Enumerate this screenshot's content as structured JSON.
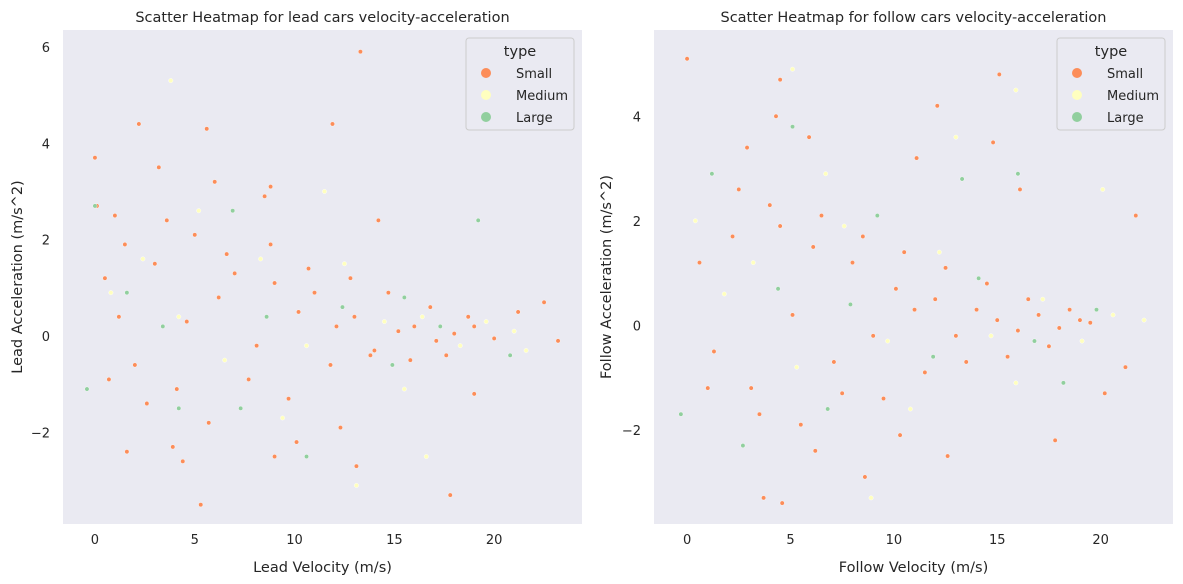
{
  "chart_data": [
    {
      "type": "scatter",
      "title": "Scatter Heatmap for lead cars velocity-acceleration",
      "xlabel": "Lead Velocity (m/s)",
      "ylabel": "Lead Acceleration (m/s^2)",
      "xlim": [
        -1.6,
        24.4
      ],
      "ylim": [
        -3.9,
        6.35
      ],
      "xticks": [
        0,
        5,
        10,
        15,
        20
      ],
      "yticks": [
        -2,
        0,
        2,
        4,
        6
      ],
      "xtick_labels": [
        "0",
        "5",
        "10",
        "15",
        "20"
      ],
      "ytick_labels": [
        "−2",
        "0",
        "2",
        "4",
        "6"
      ],
      "grid": false,
      "legend": {
        "title": "type",
        "placement": "top-right",
        "entries": [
          "Small",
          "Medium",
          "Large"
        ]
      },
      "series": [
        {
          "name": "Small",
          "color": "#fc8d59",
          "points": [
            [
              0,
              3.7
            ],
            [
              0.1,
              2.7
            ],
            [
              2.2,
              4.4
            ],
            [
              3.2,
              3.5
            ],
            [
              5.6,
              4.3
            ],
            [
              11.9,
              4.4
            ],
            [
              13.3,
              5.9
            ],
            [
              5.3,
              -3.5
            ],
            [
              17.8,
              -3.3
            ],
            [
              13.1,
              -2.7
            ],
            [
              4.4,
              -2.6
            ],
            [
              1.6,
              -2.4
            ],
            [
              9,
              -2.5
            ],
            [
              19,
              -1.2
            ],
            [
              21.2,
              0.5
            ],
            [
              23.2,
              -0.1
            ],
            [
              22.5,
              0.7
            ],
            [
              8.5,
              2.9
            ],
            [
              14.2,
              2.4
            ],
            [
              0.5,
              1.2
            ],
            [
              1.2,
              0.4
            ],
            [
              2,
              -0.6
            ],
            [
              3,
              1.5
            ],
            [
              4.1,
              -1.1
            ],
            [
              5,
              2.1
            ],
            [
              6.2,
              0.8
            ],
            [
              7,
              1.3
            ],
            [
              8.1,
              -0.2
            ],
            [
              9,
              1.1
            ],
            [
              10.2,
              0.5
            ],
            [
              11,
              0.9
            ],
            [
              12.1,
              0.2
            ],
            [
              13,
              0.4
            ],
            [
              14,
              -0.3
            ],
            [
              15.2,
              0.1
            ],
            [
              16,
              0.2
            ],
            [
              17.1,
              -0.1
            ],
            [
              18,
              0.05
            ],
            [
              19,
              0.2
            ],
            [
              20,
              -0.05
            ],
            [
              0.7,
              -0.9
            ],
            [
              1.5,
              1.9
            ],
            [
              2.6,
              -1.4
            ],
            [
              3.6,
              2.4
            ],
            [
              4.6,
              0.3
            ],
            [
              5.7,
              -1.8
            ],
            [
              6.6,
              1.7
            ],
            [
              7.7,
              -0.9
            ],
            [
              8.8,
              1.9
            ],
            [
              9.7,
              -1.3
            ],
            [
              10.7,
              1.4
            ],
            [
              11.8,
              -0.6
            ],
            [
              12.8,
              1.2
            ],
            [
              13.8,
              -0.4
            ],
            [
              14.7,
              0.9
            ],
            [
              15.8,
              -0.5
            ],
            [
              16.8,
              0.6
            ],
            [
              17.6,
              -0.4
            ],
            [
              18.7,
              0.4
            ],
            [
              1,
              2.5
            ],
            [
              6,
              3.2
            ],
            [
              8.8,
              3.1
            ],
            [
              3.9,
              -2.3
            ],
            [
              10.1,
              -2.2
            ],
            [
              12.3,
              -1.9
            ]
          ]
        },
        {
          "name": "Medium",
          "color": "#ffffbf",
          "points": [
            [
              3.8,
              5.3
            ],
            [
              13.1,
              -3.1
            ],
            [
              16.6,
              -2.5
            ],
            [
              0.8,
              0.9
            ],
            [
              2.4,
              1.6
            ],
            [
              4.2,
              0.4
            ],
            [
              6.5,
              -0.5
            ],
            [
              8.3,
              1.6
            ],
            [
              10.6,
              -0.2
            ],
            [
              12.5,
              1.5
            ],
            [
              14.5,
              0.3
            ],
            [
              16.4,
              0.4
            ],
            [
              18.3,
              -0.2
            ],
            [
              19.6,
              0.3
            ],
            [
              21,
              0.1
            ],
            [
              21.6,
              -0.3
            ],
            [
              5.2,
              2.6
            ],
            [
              11.5,
              3
            ],
            [
              15.5,
              -1.1
            ],
            [
              9.4,
              -1.7
            ]
          ]
        },
        {
          "name": "Large",
          "color": "#91cf9e",
          "points": [
            [
              -0.4,
              -1.1
            ],
            [
              0,
              2.7
            ],
            [
              19.2,
              2.4
            ],
            [
              10.6,
              -2.5
            ],
            [
              4.2,
              -1.5
            ],
            [
              1.6,
              0.9
            ],
            [
              3.4,
              0.2
            ],
            [
              6.9,
              2.6
            ],
            [
              8.6,
              0.4
            ],
            [
              12.4,
              0.6
            ],
            [
              14.9,
              -0.6
            ],
            [
              17.3,
              0.2
            ],
            [
              20.8,
              -0.4
            ],
            [
              7.3,
              -1.5
            ],
            [
              15.5,
              0.8
            ]
          ]
        }
      ]
    },
    {
      "type": "scatter",
      "title": "Scatter Heatmap for follow cars velocity-acceleration",
      "xlabel": "Follow Velocity (m/s)",
      "ylabel": "Follow Acceleration (m/s^2)",
      "xlim": [
        -1.6,
        23.5
      ],
      "ylim": [
        -3.8,
        5.65
      ],
      "xticks": [
        0,
        5,
        10,
        15,
        20
      ],
      "yticks": [
        -2,
        0,
        2,
        4
      ],
      "xtick_labels": [
        "0",
        "5",
        "10",
        "15",
        "20"
      ],
      "ytick_labels": [
        "−2",
        "0",
        "2",
        "4"
      ],
      "grid": false,
      "legend": {
        "title": "type",
        "placement": "top-right",
        "entries": [
          "Small",
          "Medium",
          "Large"
        ]
      },
      "series": [
        {
          "name": "Small",
          "color": "#fc8d59",
          "points": [
            [
              0,
              5.1
            ],
            [
              4.5,
              4.7
            ],
            [
              4.3,
              4
            ],
            [
              12.1,
              4.2
            ],
            [
              15.1,
              4.8
            ],
            [
              14.8,
              3.5
            ],
            [
              21.7,
              2.1
            ],
            [
              4.6,
              -3.4
            ],
            [
              3.7,
              -3.3
            ],
            [
              8.6,
              -2.9
            ],
            [
              12.6,
              -2.5
            ],
            [
              17.8,
              -2.2
            ],
            [
              20.2,
              -1.3
            ],
            [
              21.2,
              -0.8
            ],
            [
              0.6,
              1.2
            ],
            [
              1.3,
              -0.5
            ],
            [
              2.2,
              1.7
            ],
            [
              3.1,
              -1.2
            ],
            [
              4,
              2.3
            ],
            [
              5.1,
              0.2
            ],
            [
              6.1,
              1.5
            ],
            [
              7.1,
              -0.7
            ],
            [
              8,
              1.2
            ],
            [
              9,
              -0.2
            ],
            [
              10.1,
              0.7
            ],
            [
              11,
              0.3
            ],
            [
              12,
              0.5
            ],
            [
              13,
              -0.2
            ],
            [
              14,
              0.3
            ],
            [
              15,
              0.1
            ],
            [
              16,
              -0.1
            ],
            [
              17,
              0.2
            ],
            [
              18,
              -0.05
            ],
            [
              19,
              0.1
            ],
            [
              1,
              -1.2
            ],
            [
              2.5,
              2.6
            ],
            [
              3.5,
              -1.7
            ],
            [
              4.5,
              1.9
            ],
            [
              5.5,
              -1.9
            ],
            [
              6.5,
              2.1
            ],
            [
              7.5,
              -1.3
            ],
            [
              8.5,
              1.7
            ],
            [
              9.5,
              -1.4
            ],
            [
              10.5,
              1.4
            ],
            [
              11.5,
              -0.9
            ],
            [
              12.5,
              1.1
            ],
            [
              13.5,
              -0.7
            ],
            [
              14.5,
              0.8
            ],
            [
              15.5,
              -0.6
            ],
            [
              16.5,
              0.5
            ],
            [
              17.5,
              -0.4
            ],
            [
              18.5,
              0.3
            ],
            [
              19.5,
              0.05
            ],
            [
              2.9,
              3.4
            ],
            [
              5.9,
              3.6
            ],
            [
              11.1,
              3.2
            ],
            [
              16.1,
              2.6
            ],
            [
              6.2,
              -2.4
            ],
            [
              10.3,
              -2.1
            ]
          ]
        },
        {
          "name": "Medium",
          "color": "#ffffbf",
          "points": [
            [
              5.1,
              4.9
            ],
            [
              8.9,
              -3.3
            ],
            [
              15.9,
              4.5
            ],
            [
              20.1,
              2.6
            ],
            [
              0.4,
              2
            ],
            [
              1.8,
              0.6
            ],
            [
              3.2,
              1.2
            ],
            [
              5.3,
              -0.8
            ],
            [
              7.6,
              1.9
            ],
            [
              9.7,
              -0.3
            ],
            [
              12.2,
              1.4
            ],
            [
              14.7,
              -0.2
            ],
            [
              17.2,
              0.5
            ],
            [
              19.1,
              -0.3
            ],
            [
              20.6,
              0.2
            ],
            [
              22.1,
              0.1
            ],
            [
              13,
              3.6
            ],
            [
              6.7,
              2.9
            ],
            [
              15.9,
              -1.1
            ],
            [
              10.8,
              -1.6
            ]
          ]
        },
        {
          "name": "Large",
          "color": "#91cf9e",
          "points": [
            [
              5.1,
              3.8
            ],
            [
              -0.3,
              -1.7
            ],
            [
              16,
              2.9
            ],
            [
              13.3,
              2.8
            ],
            [
              1.2,
              2.9
            ],
            [
              2.7,
              -2.3
            ],
            [
              4.4,
              0.7
            ],
            [
              7.9,
              0.4
            ],
            [
              9.2,
              2.1
            ],
            [
              11.9,
              -0.6
            ],
            [
              14.1,
              0.9
            ],
            [
              16.8,
              -0.3
            ],
            [
              19.8,
              0.3
            ],
            [
              6.8,
              -1.6
            ],
            [
              18.2,
              -1.1
            ]
          ]
        }
      ]
    }
  ]
}
